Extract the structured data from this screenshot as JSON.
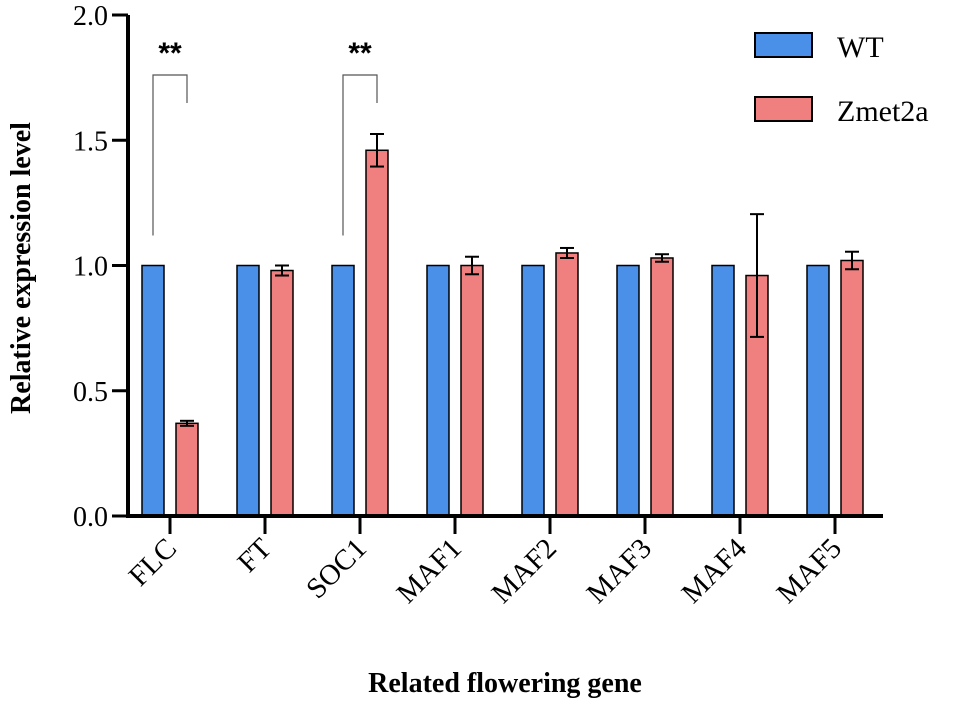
{
  "chart_data": {
    "type": "bar",
    "title": "",
    "xlabel": "Related flowering gene",
    "ylabel": "Relative expression level",
    "ylim": [
      0,
      2.0
    ],
    "yticks": [
      "0.0",
      "0.5",
      "1.0",
      "1.5",
      "2.0"
    ],
    "categories": [
      "FLC",
      "FT",
      "SOC1",
      "MAF1",
      "MAF2",
      "MAF3",
      "MAF4",
      "MAF5"
    ],
    "series": [
      {
        "name": "WT",
        "color": "#4a90e8",
        "values": [
          1.0,
          1.0,
          1.0,
          1.0,
          1.0,
          1.0,
          1.0,
          1.0
        ]
      },
      {
        "name": "Zmet2a",
        "color": "#f07f7f",
        "values": [
          0.37,
          0.98,
          1.46,
          1.0,
          1.05,
          1.03,
          0.96,
          1.02
        ],
        "errors": [
          0.01,
          0.02,
          0.065,
          0.035,
          0.02,
          0.015,
          0.245,
          0.035
        ]
      }
    ],
    "significance": [
      {
        "category": "FLC",
        "label": "**"
      },
      {
        "category": "SOC1",
        "label": "**"
      }
    ],
    "legend_position": "top-right",
    "grid": false
  }
}
